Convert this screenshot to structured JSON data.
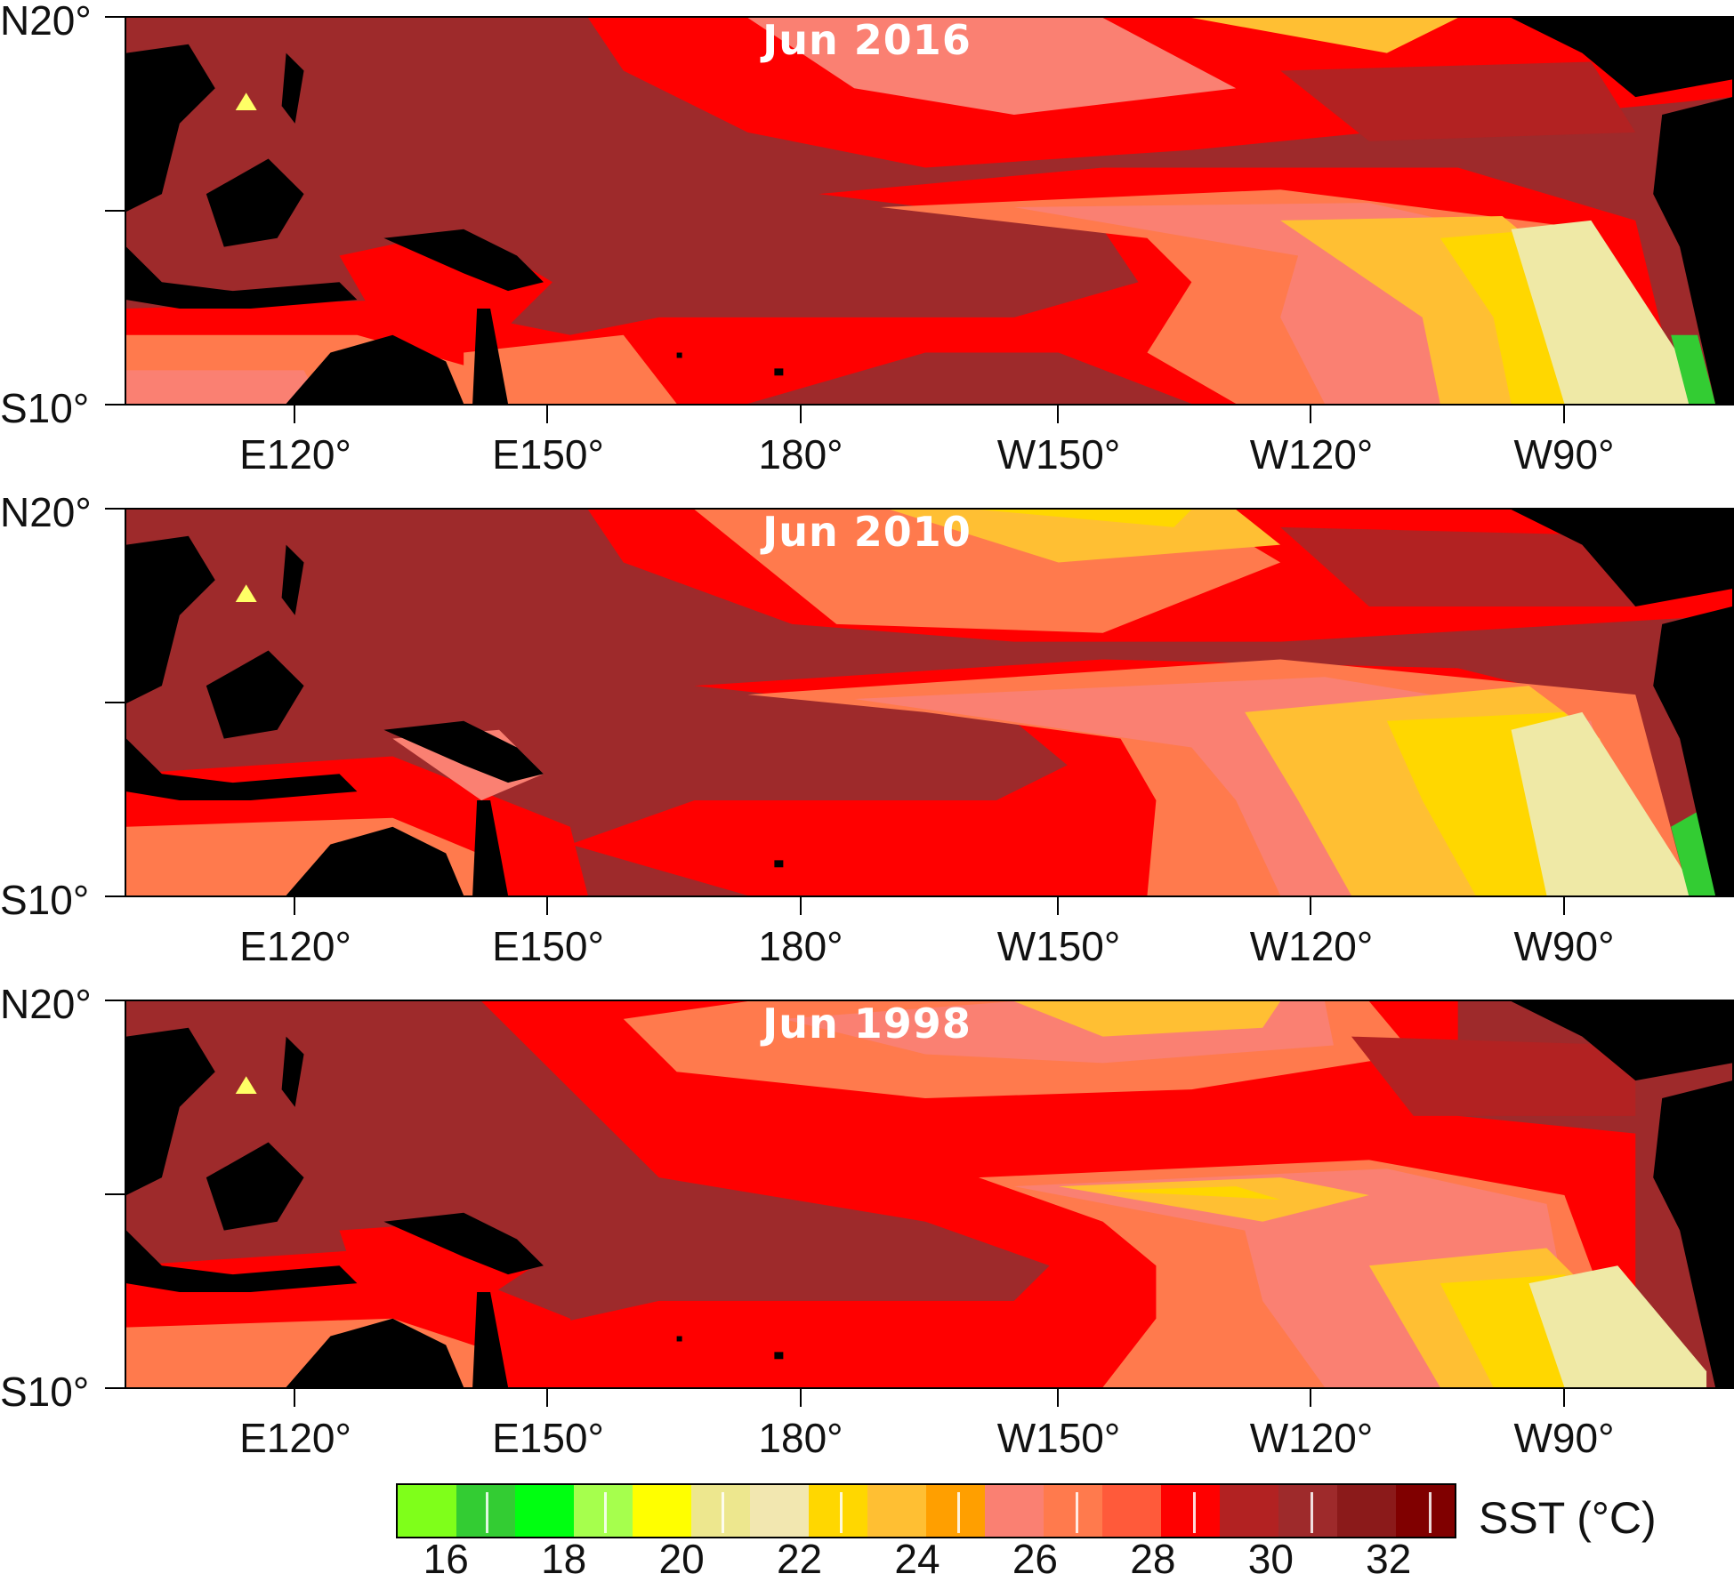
{
  "panels": [
    {
      "title": "Jun 2016"
    },
    {
      "title": "Jun 2010"
    },
    {
      "title": "Jun 1998"
    }
  ],
  "axes": {
    "lat_top": "N20°",
    "lat_bottom": "S10°",
    "lon_labels": [
      "E120°",
      "E150°",
      "180°",
      "W150°",
      "W120°",
      "W90°"
    ]
  },
  "legend": {
    "label": "SST (°C)",
    "tick_labels": [
      "16",
      "18",
      "20",
      "22",
      "24",
      "26",
      "28",
      "30",
      "32"
    ],
    "colors": [
      "#7fff1a",
      "#33cc33",
      "#00ff11",
      "#a6ff4d",
      "#ffff00",
      "#ede78e",
      "#f2e7b0",
      "#ffd700",
      "#ffbf33",
      "#ff9f00",
      "#fa8072",
      "#ff7a4d",
      "#ff5a3a",
      "#ff0000",
      "#b22222",
      "#9e2a2b",
      "#8b1a1a",
      "#800000"
    ]
  },
  "colors": {
    "land": "#000000",
    "marker": "#ffff66",
    "deep_warm": "#9e2a2b",
    "warm": "#b22222",
    "red": "#ff0000",
    "salmon": "#fa8072",
    "coral": "#ff7a4d",
    "orange": "#ff9f00",
    "gold": "#ffd700",
    "pale": "#efe9a6",
    "green": "#33cc33"
  }
}
